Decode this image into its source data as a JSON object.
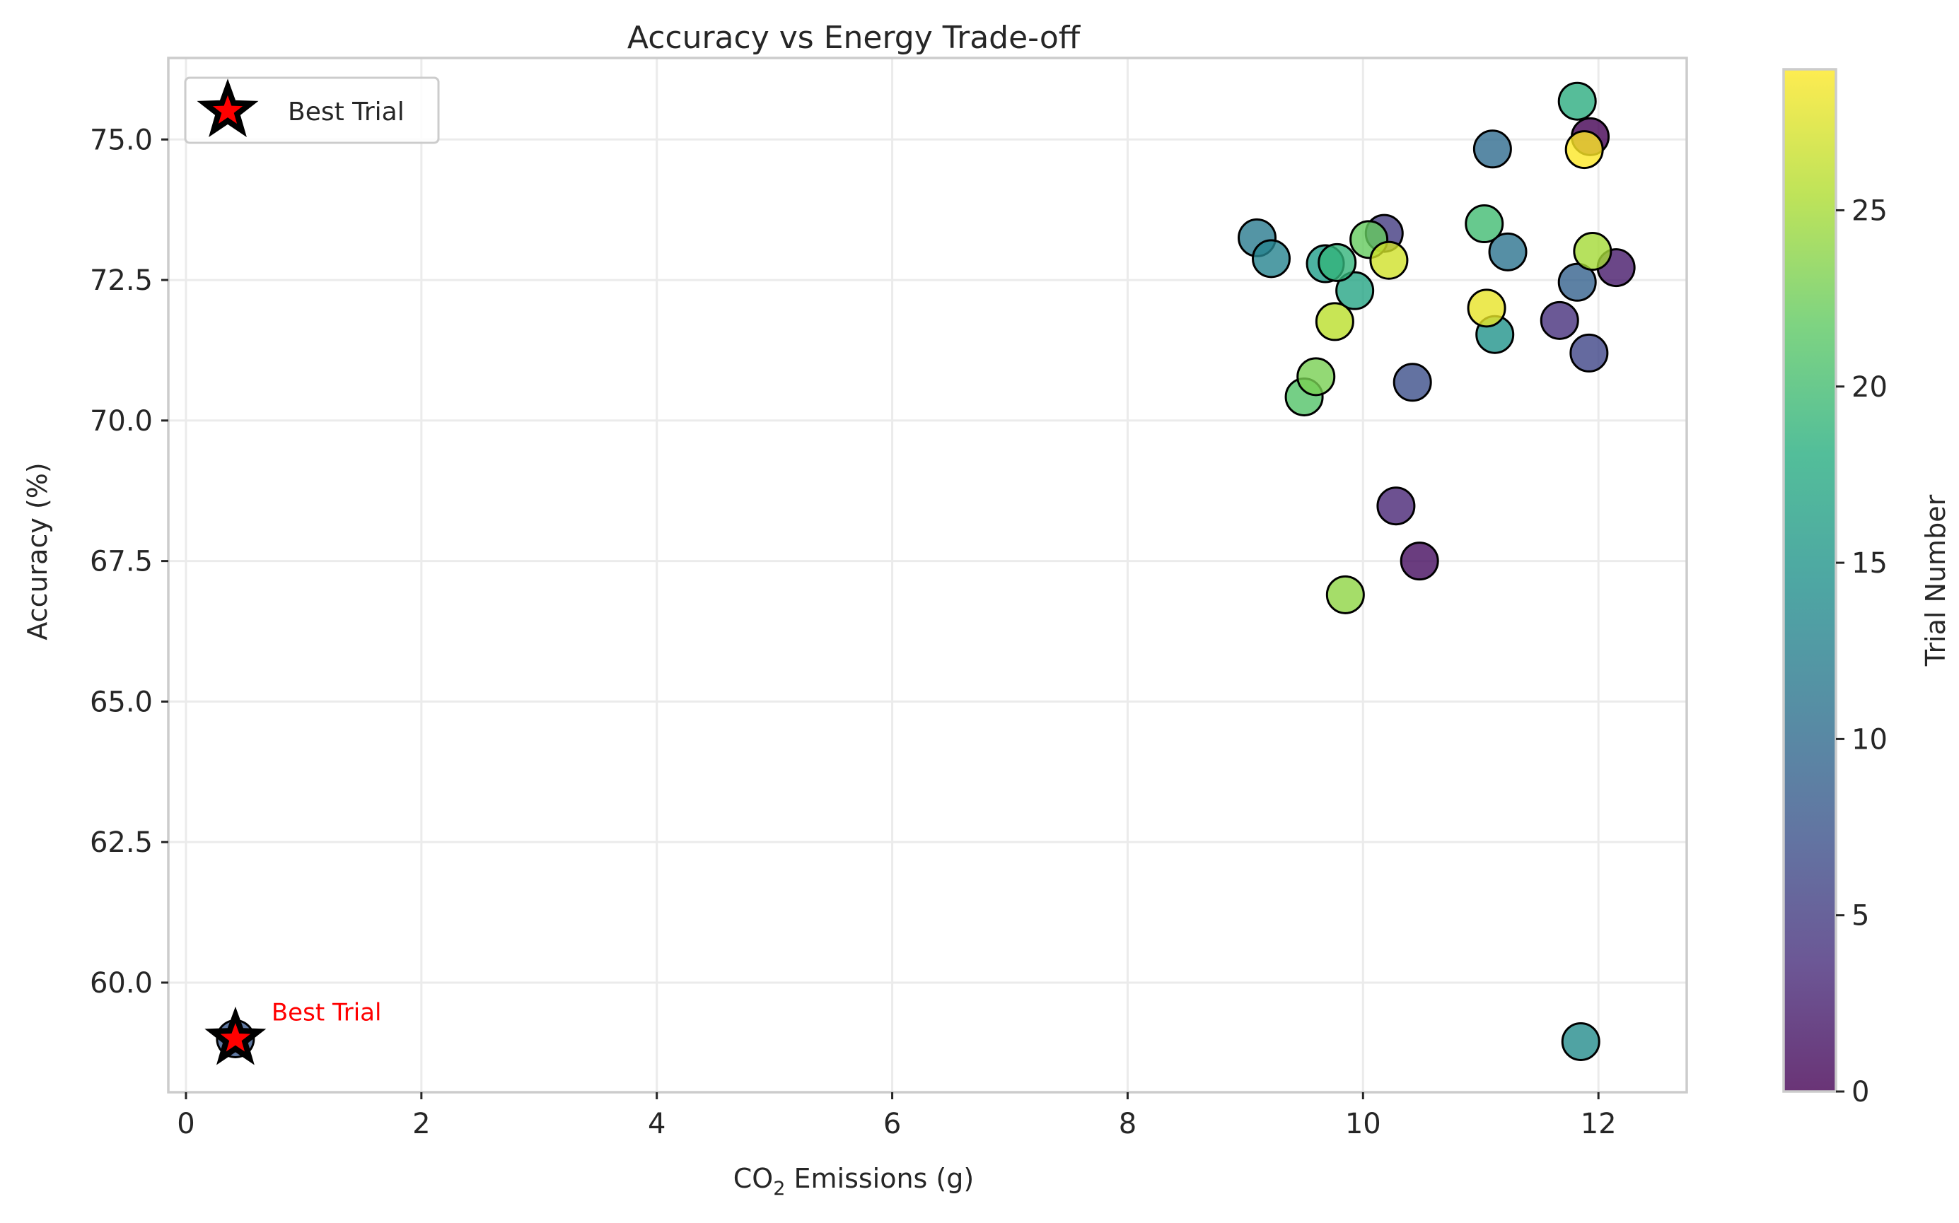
{
  "chart_data": {
    "type": "scatter",
    "title": "Accuracy vs Energy Trade-off",
    "xlabel_main": "CO",
    "xlabel_sub": "2",
    "xlabel_rest": " Emissions (g)",
    "ylabel": "Accuracy (%)",
    "xlim": [
      -0.15,
      12.75
    ],
    "ylim": [
      58.05,
      76.45
    ],
    "xticks": [
      0,
      2,
      4,
      6,
      8,
      10,
      12
    ],
    "yticks": [
      60.0,
      62.5,
      65.0,
      67.5,
      70.0,
      72.5,
      75.0
    ],
    "ytick_labels": [
      "60.0",
      "62.5",
      "65.0",
      "67.5",
      "70.0",
      "72.5",
      "75.0"
    ],
    "grid": true,
    "colormap": "viridis",
    "colorbar": {
      "label": "Trial Number",
      "min": 0,
      "max": 29,
      "ticks": [
        0,
        5,
        10,
        15,
        20,
        25
      ]
    },
    "points": [
      {
        "x": 11.93,
        "y": 75.05,
        "trial": 0
      },
      {
        "x": 10.48,
        "y": 67.5,
        "trial": 1
      },
      {
        "x": 12.15,
        "y": 72.72,
        "trial": 2
      },
      {
        "x": 10.28,
        "y": 68.48,
        "trial": 3
      },
      {
        "x": 11.67,
        "y": 71.78,
        "trial": 4
      },
      {
        "x": 10.18,
        "y": 73.33,
        "trial": 5
      },
      {
        "x": 11.92,
        "y": 71.2,
        "trial": 6
      },
      {
        "x": 10.42,
        "y": 70.68,
        "trial": 7
      },
      {
        "x": 0.42,
        "y": 59.0,
        "trial": 8
      },
      {
        "x": 11.82,
        "y": 72.46,
        "trial": 9
      },
      {
        "x": 11.1,
        "y": 74.83,
        "trial": 10
      },
      {
        "x": 11.23,
        "y": 73.0,
        "trial": 11
      },
      {
        "x": 9.1,
        "y": 73.25,
        "trial": 12
      },
      {
        "x": 9.22,
        "y": 72.88,
        "trial": 13
      },
      {
        "x": 11.85,
        "y": 58.95,
        "trial": 14
      },
      {
        "x": 11.12,
        "y": 71.53,
        "trial": 15
      },
      {
        "x": 9.68,
        "y": 72.79,
        "trial": 16
      },
      {
        "x": 9.93,
        "y": 72.31,
        "trial": 17
      },
      {
        "x": 11.82,
        "y": 75.68,
        "trial": 18
      },
      {
        "x": 9.78,
        "y": 72.81,
        "trial": 19
      },
      {
        "x": 11.03,
        "y": 73.5,
        "trial": 20
      },
      {
        "x": 9.5,
        "y": 70.42,
        "trial": 21
      },
      {
        "x": 10.05,
        "y": 73.22,
        "trial": 22
      },
      {
        "x": 9.6,
        "y": 70.78,
        "trial": 23
      },
      {
        "x": 9.85,
        "y": 66.9,
        "trial": 24
      },
      {
        "x": 11.95,
        "y": 73.01,
        "trial": 25
      },
      {
        "x": 9.76,
        "y": 71.76,
        "trial": 26
      },
      {
        "x": 10.22,
        "y": 72.85,
        "trial": 27
      },
      {
        "x": 11.05,
        "y": 72.0,
        "trial": 28
      },
      {
        "x": 11.88,
        "y": 74.82,
        "trial": 29
      }
    ],
    "best_trial": {
      "x": 0.42,
      "y": 59.0,
      "label": "Best Trial"
    },
    "legend": {
      "label": "Best Trial",
      "position": "upper-left"
    },
    "colors": {
      "best_marker": "#ff0000",
      "marker_edge": "#000000",
      "annotation": "#ff0000"
    }
  }
}
